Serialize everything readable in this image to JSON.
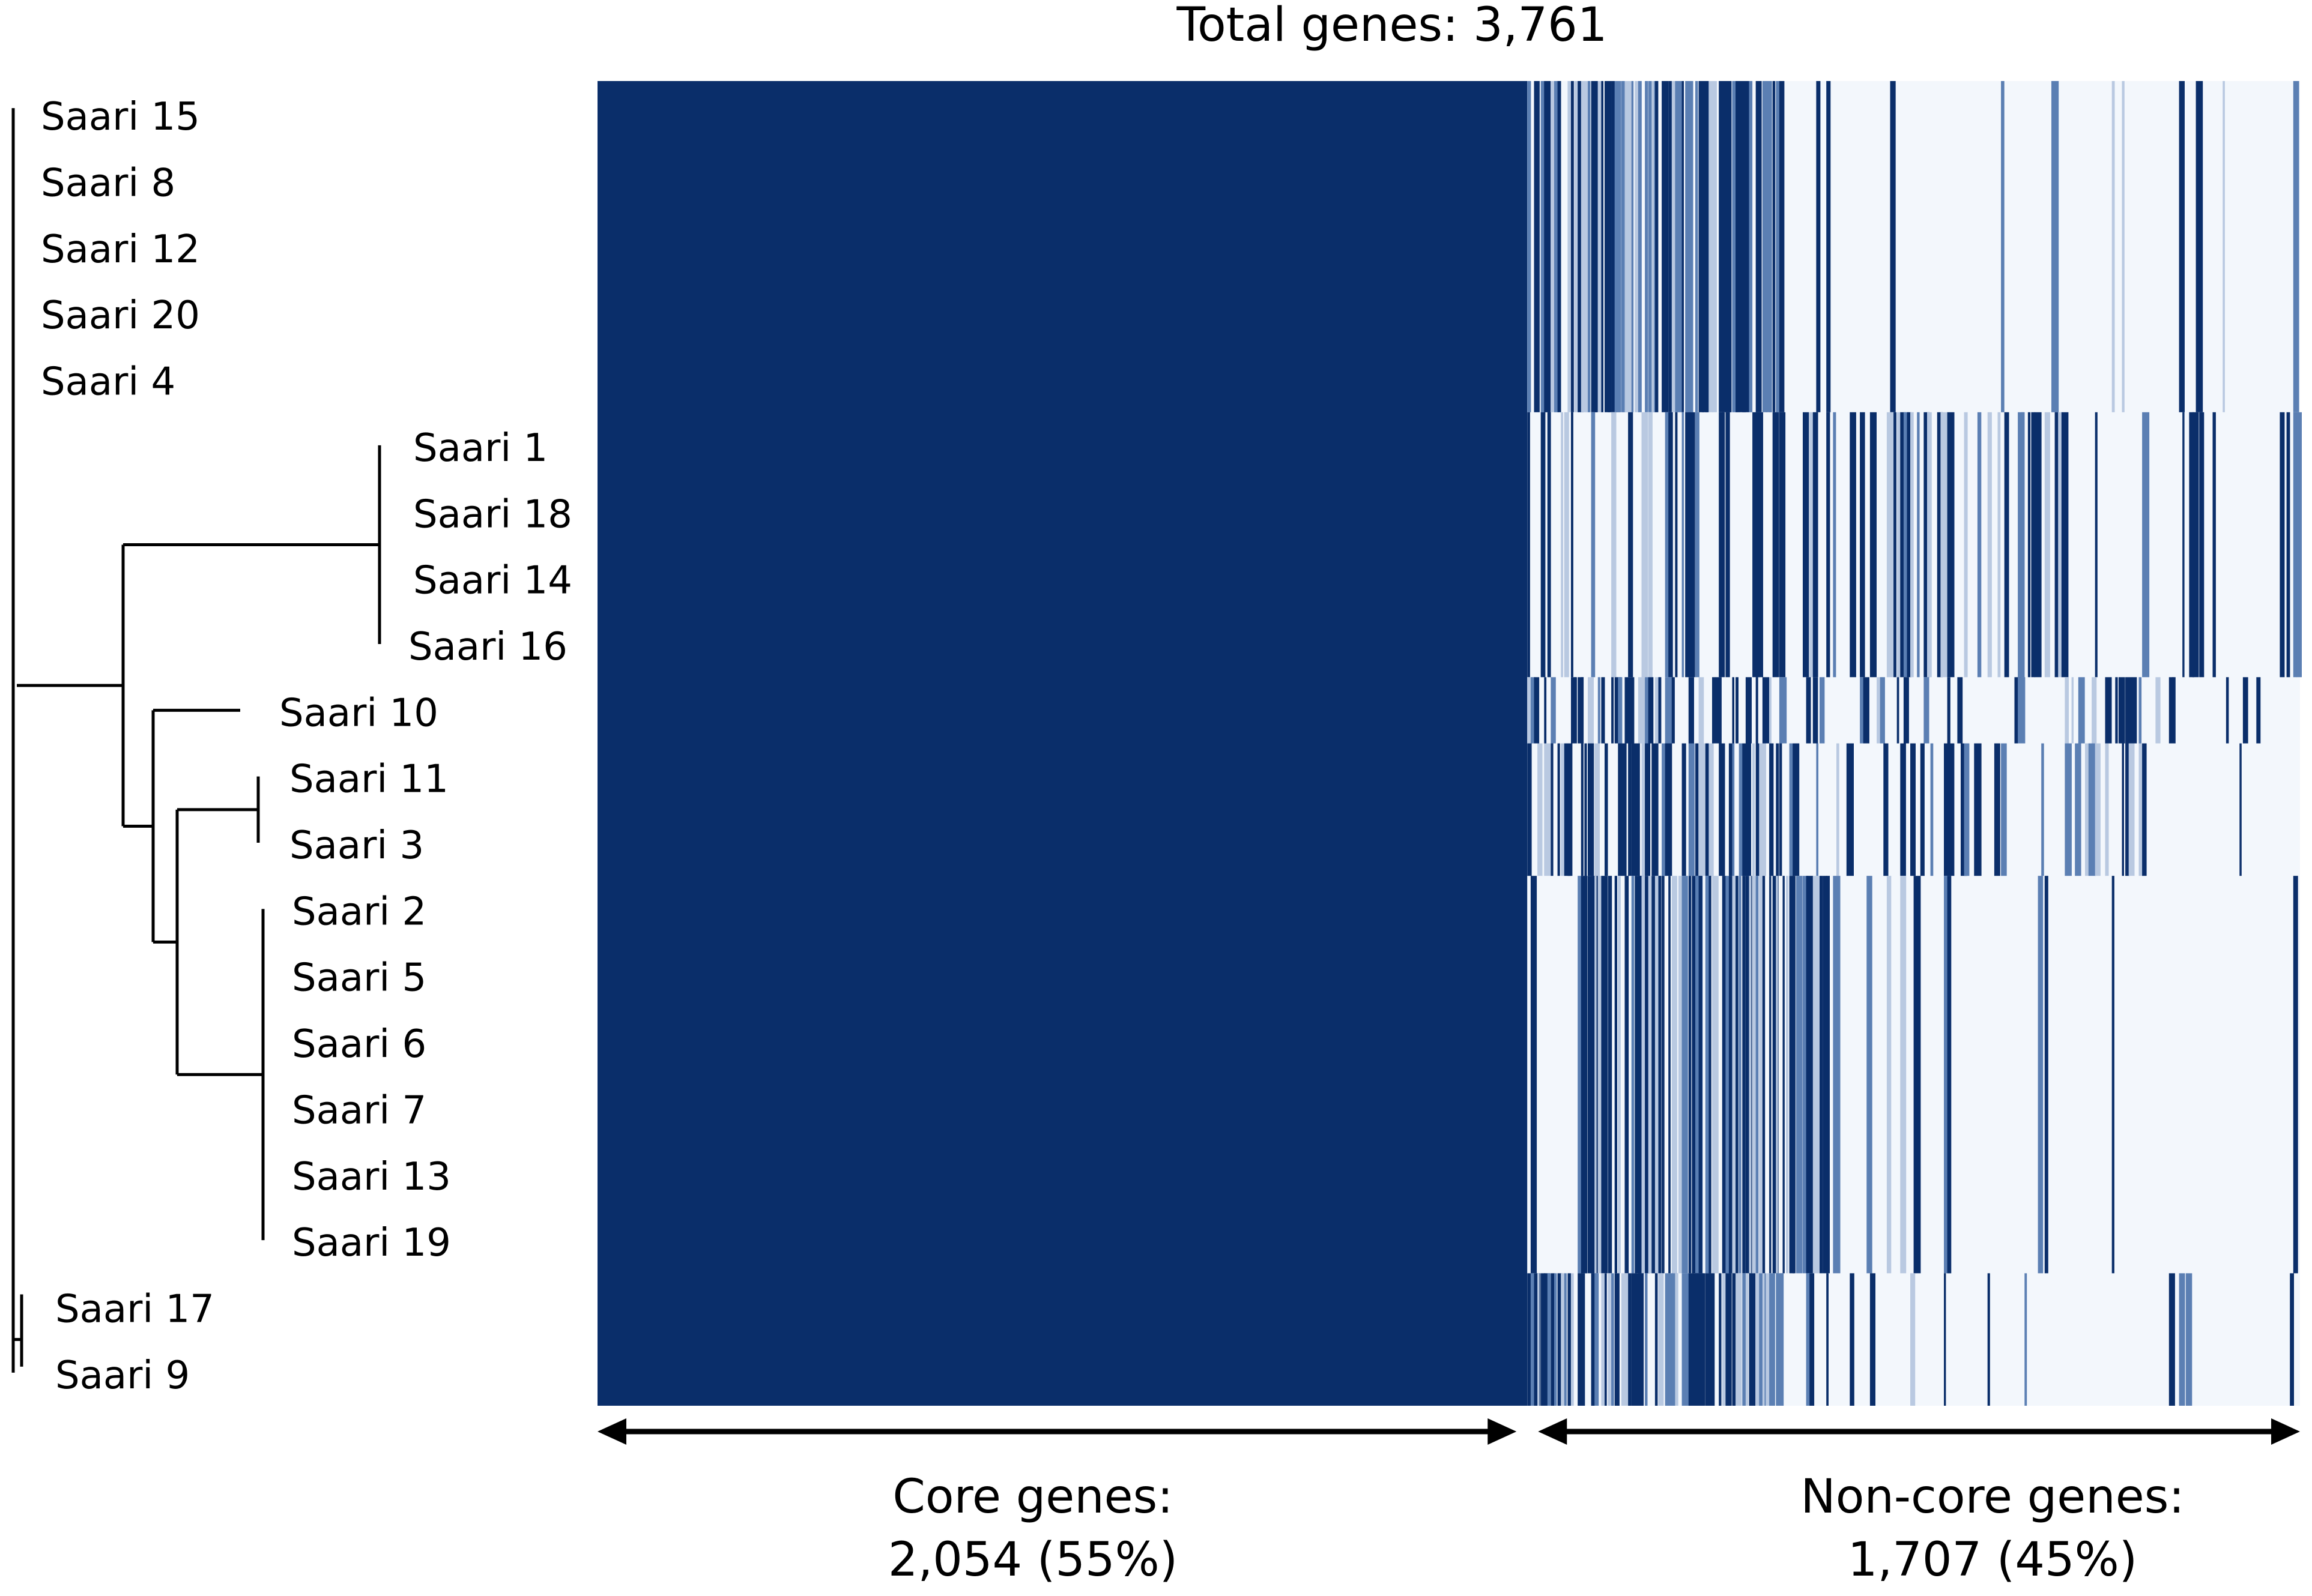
{
  "chart_data": {
    "type": "heatmap",
    "title": "Total genes: 3,761",
    "total_genes": 3761,
    "core": {
      "label": "Core genes:",
      "value_text": "2,054 (55%)",
      "count": 2054,
      "percent": 55
    },
    "noncore": {
      "label": "Non-core genes:",
      "value_text": "1,707 (45%)",
      "count": 1707,
      "percent": 45
    },
    "rows": [
      "Saari 15",
      "Saari 8",
      "Saari 12",
      "Saari 20",
      "Saari 4",
      "Saari 1",
      "Saari 18",
      "Saari 14",
      "Saari 16",
      "Saari 10",
      "Saari 11",
      "Saari 3",
      "Saari 2",
      "Saari 5",
      "Saari 6",
      "Saari 7",
      "Saari 13",
      "Saari 19",
      "Saari 17",
      "Saari 9"
    ],
    "row_groups": [
      {
        "name": "group-a",
        "members": [
          "Saari 15",
          "Saari 8",
          "Saari 12",
          "Saari 20",
          "Saari 4"
        ]
      },
      {
        "name": "group-b",
        "members": [
          "Saari 1",
          "Saari 18",
          "Saari 14",
          "Saari 16"
        ]
      },
      {
        "name": "group-c",
        "members": [
          "Saari 10"
        ]
      },
      {
        "name": "group-d",
        "members": [
          "Saari 11",
          "Saari 3"
        ]
      },
      {
        "name": "group-e",
        "members": [
          "Saari 2",
          "Saari 5",
          "Saari 6",
          "Saari 7",
          "Saari 13",
          "Saari 19"
        ]
      },
      {
        "name": "group-f",
        "members": [
          "Saari 17",
          "Saari 9"
        ]
      }
    ],
    "colors": {
      "present": "#0a2e6a",
      "absent": "#f3f7fc",
      "mid": "#5b7fb3",
      "light": "#b9c9e1"
    }
  }
}
